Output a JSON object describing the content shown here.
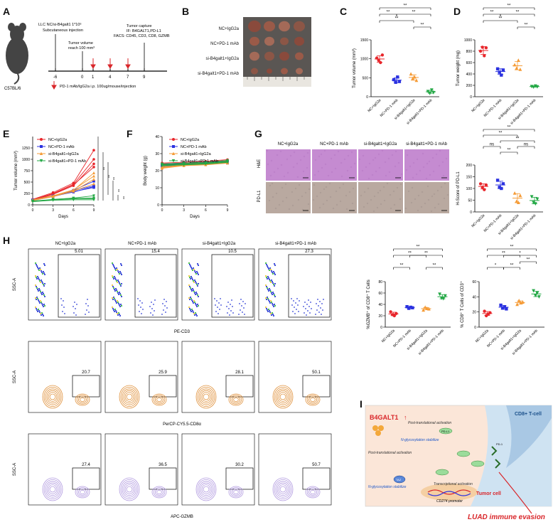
{
  "panels": [
    "A",
    "B",
    "C",
    "D",
    "E",
    "F",
    "G",
    "H",
    "I"
  ],
  "colors": {
    "nc_igg": "#e8262b",
    "nc_pd1": "#2b32e0",
    "si_igg": "#f59b36",
    "si_pd1": "#23a845",
    "he": "#c58bd1",
    "ihc": "#b9a9a0"
  },
  "panelA": {
    "strain": "C57BL/6",
    "injection": "LLC NC/si-B4galt1 1*10⁶",
    "injection_note": "Subcutaneous injection",
    "tumor_volume": "Tumor volume",
    "reach": "reach 100 mm³",
    "capture": "Tumor capture",
    "if": "IF: B4GALT1,PD-L1",
    "facs": "FACS: CD45, CD3, CD8, GZMB",
    "days": [
      "-6",
      "0",
      "1",
      "4",
      "7",
      "9"
    ],
    "legend": "PD-1 mAb/IgG2a i.p. 100ug/mouse/injection"
  },
  "panelB": {
    "groups": [
      "NC+IgG2a",
      "NC+PD-1 mAb",
      "si-B4galt1+IgG2a",
      "si-B4galt1+PD-1 mAb"
    ]
  },
  "groups": [
    "NC+IgG2a",
    "NC+PD-1 mAb",
    "si-B4galt1+IgG2a",
    "si-B4galt1+PD-1 mAb"
  ],
  "chart_data": [
    {
      "id": "C",
      "type": "scatter",
      "ylabel": "Tumor volume (mm³)",
      "ylim": [
        0,
        1500
      ],
      "yticks": [
        0,
        500,
        1000,
        1500
      ],
      "categories": [
        "NC+IgG2a",
        "NC+PD-1 mAb",
        "si-B4galt1+IgG2a",
        "si-B4galt1+PD-1 mAb"
      ],
      "series": [
        {
          "name": "NC+IgG2a",
          "values": [
            1020,
            960,
            900,
            1100
          ]
        },
        {
          "name": "NC+PD-1 mAb",
          "values": [
            450,
            380,
            520,
            400
          ]
        },
        {
          "name": "si-B4galt1+IgG2a",
          "values": [
            600,
            480,
            520,
            430
          ]
        },
        {
          "name": "si-B4galt1+PD-1 mAb",
          "values": [
            140,
            90,
            180,
            110
          ]
        }
      ],
      "sig": [
        "**",
        "**",
        "**",
        "**",
        "**"
      ]
    },
    {
      "id": "D",
      "type": "scatter",
      "ylabel": "Tumor weight (mg)",
      "ylim": [
        0,
        1000
      ],
      "yticks": [
        0,
        200,
        400,
        600,
        800,
        1000
      ],
      "categories": [
        "NC+IgG2a",
        "NC+PD-1 mAb",
        "si-B4galt1+IgG2a",
        "si-B4galt1+PD-1 mAb"
      ],
      "series": [
        {
          "name": "NC+IgG2a",
          "values": [
            800,
            870,
            720,
            860
          ]
        },
        {
          "name": "NC+PD-1 mAb",
          "values": [
            490,
            430,
            380,
            470
          ]
        },
        {
          "name": "si-B4galt1+IgG2a",
          "values": [
            560,
            500,
            640,
            480
          ]
        },
        {
          "name": "si-B4galt1+PD-1 mAb",
          "values": [
            180,
            170,
            190,
            175
          ]
        }
      ],
      "sig": [
        "**",
        "**",
        "**",
        "**",
        "**"
      ]
    },
    {
      "id": "E",
      "type": "line",
      "xlabel": "Days",
      "ylabel": "Tumor volume (mm³)",
      "x": [
        0,
        3,
        6,
        9
      ],
      "ylim": [
        0,
        1500
      ],
      "yticks": [
        0,
        250,
        500,
        750,
        1000,
        1250
      ],
      "legend": [
        "NC+IgG2a",
        "NC+PD-1 mAb",
        "si-B4galt1+IgG2a",
        "si-B4galt1+PD-1 mAb"
      ],
      "series": [
        {
          "name": "NC+IgG2a",
          "lines": [
            [
              120,
              270,
              480,
              1200
            ],
            [
              110,
              250,
              450,
              1000
            ],
            [
              100,
              230,
              420,
              900
            ],
            [
              105,
              240,
              440,
              830
            ]
          ]
        },
        {
          "name": "NC+PD-1 mAb",
          "lines": [
            [
              100,
              190,
              320,
              520
            ],
            [
              110,
              200,
              310,
              420
            ],
            [
              95,
              180,
              290,
              380
            ],
            [
              105,
              190,
              280,
              400
            ]
          ]
        },
        {
          "name": "si-B4galt1+IgG2a",
          "lines": [
            [
              100,
              200,
              330,
              630
            ],
            [
              95,
              180,
              300,
              560
            ],
            [
              105,
              190,
              300,
              460
            ],
            [
              110,
              200,
              320,
              700
            ]
          ]
        },
        {
          "name": "si-B4galt1+PD-1 mAb",
          "lines": [
            [
              80,
              120,
              150,
              200
            ],
            [
              70,
              100,
              110,
              110
            ],
            [
              85,
              110,
              130,
              130
            ],
            [
              75,
              105,
              140,
              150
            ]
          ]
        }
      ],
      "sig": [
        "**",
        "**",
        "**",
        "**",
        "**"
      ]
    },
    {
      "id": "F",
      "type": "line",
      "xlabel": "Days",
      "ylabel": "Body weight (g)",
      "x": [
        0,
        3,
        6,
        9
      ],
      "ylim": [
        0,
        40
      ],
      "yticks": [
        0,
        10,
        20,
        30,
        40
      ],
      "legend": [
        "NC+IgG2a",
        "NC+PD-1 mAb",
        "si-B4galt1+IgG2a",
        "si-B4galt1+PD-1 mAb"
      ],
      "series": [
        {
          "name": "NC+IgG2a",
          "values": [
            24,
            24.5,
            25,
            26
          ]
        },
        {
          "name": "NC+PD-1 mAb",
          "values": [
            23,
            24,
            24.5,
            25
          ]
        },
        {
          "name": "si-B4galt1+IgG2a",
          "values": [
            22,
            23.5,
            24,
            25
          ]
        },
        {
          "name": "si-B4galt1+PD-1 mAb",
          "values": [
            23.5,
            24,
            24.5,
            25.5
          ]
        }
      ]
    },
    {
      "id": "G",
      "type": "scatter",
      "ylabel": "H-Score of PD-L1",
      "ylim": [
        0,
        200
      ],
      "yticks": [
        0,
        50,
        100,
        150,
        200
      ],
      "categories": [
        "NC+IgG2a",
        "NC+PD-1 mAb",
        "si-B4galt1+IgG2a",
        "si-B4galt1+PD-1 mAb"
      ],
      "series": [
        {
          "name": "NC+IgG2a",
          "values": [
            120,
            105,
            95,
            115
          ]
        },
        {
          "name": "NC+PD-1 mAb",
          "values": [
            135,
            105,
            100,
            120
          ]
        },
        {
          "name": "si-B4galt1+IgG2a",
          "values": [
            80,
            45,
            40,
            70
          ]
        },
        {
          "name": "si-B4galt1+PD-1 mAb",
          "values": [
            65,
            40,
            35,
            55
          ]
        }
      ],
      "sig": [
        "**",
        "**",
        "**",
        "ns",
        "ns",
        "**"
      ]
    },
    {
      "id": "H1",
      "type": "scatter",
      "ylabel": "%GZMB⁺ of CD8⁺ T Cells",
      "ylim": [
        0,
        80
      ],
      "yticks": [
        0,
        20,
        40,
        60,
        80
      ],
      "categories": [
        "NC+IgG2a",
        "NC+PD-1 mAb",
        "si-B4galt1+IgG2a",
        "si-B4galt1+PD-1 mAb"
      ],
      "series": [
        {
          "name": "NC+IgG2a",
          "values": [
            27,
            22,
            20,
            24
          ]
        },
        {
          "name": "NC+PD-1 mAb",
          "values": [
            36,
            33,
            35,
            34
          ]
        },
        {
          "name": "si-B4galt1+IgG2a",
          "values": [
            30,
            35,
            33,
            32
          ]
        },
        {
          "name": "si-B4galt1+PD-1 mAb",
          "values": [
            58,
            51,
            50,
            55
          ]
        }
      ],
      "sig": [
        "**",
        "**",
        "**",
        "**",
        "**"
      ]
    },
    {
      "id": "H2",
      "type": "scatter",
      "ylabel": "% CD8⁺ T Cells of CD3⁺",
      "ylim": [
        0,
        60
      ],
      "yticks": [
        0,
        20,
        40,
        60
      ],
      "categories": [
        "NC+IgG2a",
        "NC+PD-1 mAb",
        "si-B4galt1+IgG2a",
        "si-B4galt1+PD-1 mAb"
      ],
      "series": [
        {
          "name": "NC+IgG2a",
          "values": [
            21,
            15,
            17,
            19
          ]
        },
        {
          "name": "NC+PD-1 mAb",
          "values": [
            29,
            25,
            27,
            24
          ]
        },
        {
          "name": "si-B4galt1+IgG2a",
          "values": [
            30,
            35,
            32,
            33
          ]
        },
        {
          "name": "si-B4galt1+PD-1 mAb",
          "values": [
            48,
            42,
            45,
            40
          ]
        }
      ],
      "sig": [
        "**",
        "**",
        "*",
        "*",
        "**",
        "**"
      ]
    }
  ],
  "panelG": {
    "he": "H&E",
    "pdl1": "PD-L1"
  },
  "panelH": {
    "groups": [
      "NC+IgG2a",
      "NC+PD-1 mAb",
      "si-B4galt1+IgG2a",
      "si-B4galt1+PD-1 mAb"
    ],
    "rows": [
      {
        "ylabel": "SSC-A",
        "xlabel": "PE-CD3",
        "values": [
          "5.01",
          "15.4",
          "10.5",
          "27.3"
        ]
      },
      {
        "ylabel": "SSC-A",
        "xlabel": "PerCP-CY5.5-CD8α",
        "values": [
          "20.7",
          "25.9",
          "28.1",
          "50.1"
        ]
      },
      {
        "ylabel": "SSC-A",
        "xlabel": "APC-GZMB",
        "values": [
          "27.4",
          "36.5",
          "30.2",
          "50.7"
        ]
      }
    ]
  },
  "panelI": {
    "b4galt1": "B4GALT1",
    "cd8": "CD8+ T-cell",
    "post": "Post-translational activation",
    "nglyc": "N-glycosylation stabilize",
    "post2": "Post-translational activation",
    "nglyc2": "N-glycosylation stabilize",
    "trans": "Transcriptional activation",
    "promoter": "CD274 promoter",
    "tumor": "Tumor cell",
    "pdl1": "PD-L1",
    "pd1": "PD-1",
    "taz": "TAZ",
    "evasion": "LUAD immune evasion"
  }
}
